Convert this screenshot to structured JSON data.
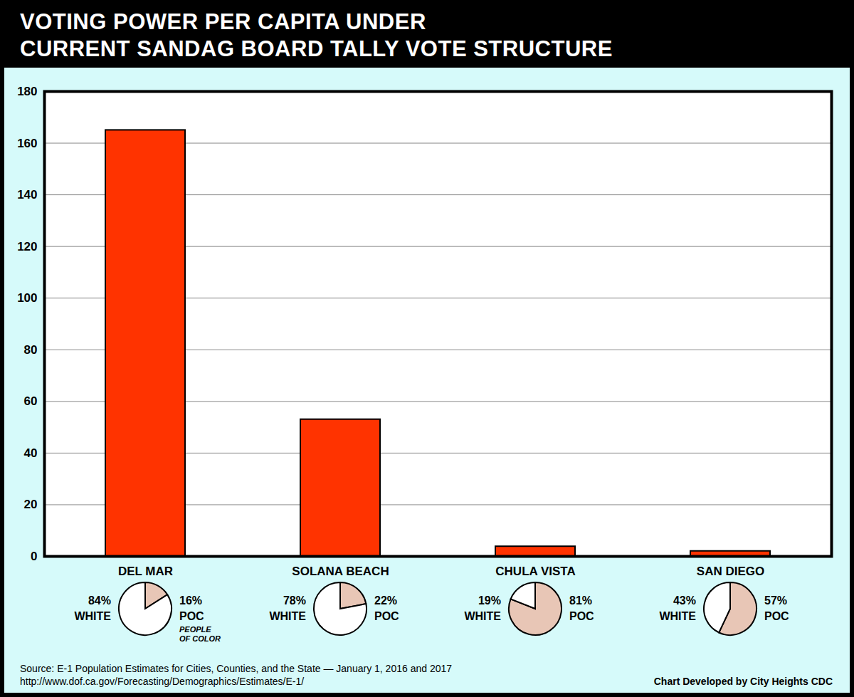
{
  "chart_data": [
    {
      "type": "bar",
      "title": [
        "VOTING POWER PER CAPITA UNDER",
        "CURRENT SANDAG BOARD TALLY VOTE STRUCTURE"
      ],
      "categories": [
        "DEL MAR",
        "SOLANA BEACH",
        "CHULA VISTA",
        "SAN DIEGO"
      ],
      "values": [
        165,
        53,
        3.8,
        2
      ],
      "color": "#ff3300",
      "ylim": [
        0,
        180
      ],
      "yticks": [
        0,
        20,
        40,
        60,
        80,
        100,
        120,
        140,
        160,
        180
      ],
      "grid": true,
      "source": [
        "Source: E-1 Population Estimates for Cities, Counties, and the State — January 1, 2016 and 2017",
        "http://www.dof.ca.gov/Forecasting/Demographics/Estimates/E-1/"
      ],
      "credit": "Chart Developed by City Heights CDC"
    },
    {
      "type": "pie",
      "categories": [
        "WHITE",
        "POC"
      ],
      "values": [
        84,
        16
      ],
      "value_labels": [
        "84%",
        "16%"
      ],
      "colors": [
        "#ffffff",
        "#e8c6b6"
      ],
      "data_labels": true,
      "annotations": [
        "PEOPLE OF COLOR"
      ]
    },
    {
      "type": "pie",
      "categories": [
        "WHITE",
        "POC"
      ],
      "values": [
        78,
        22
      ],
      "value_labels": [
        "78%",
        "22%"
      ],
      "colors": [
        "#ffffff",
        "#e8c6b6"
      ],
      "data_labels": true
    },
    {
      "type": "pie",
      "categories": [
        "WHITE",
        "POC"
      ],
      "values": [
        19,
        81
      ],
      "value_labels": [
        "19%",
        "81%"
      ],
      "colors": [
        "#ffffff",
        "#e8c6b6"
      ],
      "data_labels": true
    },
    {
      "type": "pie",
      "categories": [
        "WHITE",
        "POC"
      ],
      "values": [
        43,
        57
      ],
      "value_labels": [
        "43%",
        "57%"
      ],
      "colors": [
        "#ffffff",
        "#e8c6b6"
      ],
      "data_labels": true
    }
  ]
}
